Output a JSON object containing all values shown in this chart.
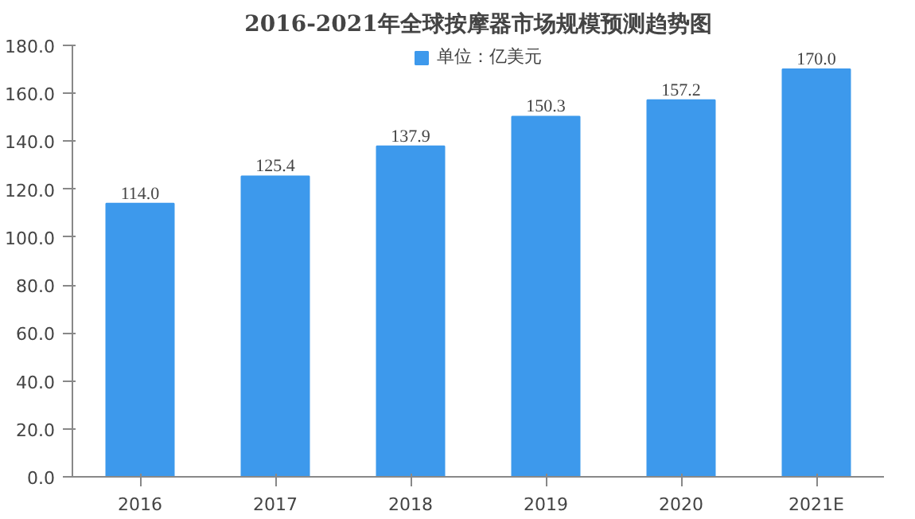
{
  "chart_data": {
    "type": "bar",
    "title": "2016-2021年全球按摩器市场规模预测趋势图",
    "categories": [
      "2016",
      "2017",
      "2018",
      "2019",
      "2020",
      "2021E"
    ],
    "series": [
      {
        "name": "单位：亿美元",
        "color": "#3d99ec",
        "values": [
          114.0,
          125.4,
          137.9,
          150.3,
          157.2,
          170.0
        ],
        "value_labels": [
          "114.0",
          "125.4",
          "137.9",
          "150.3",
          "157.2",
          "170.0"
        ]
      }
    ],
    "ylim": [
      0,
      180
    ],
    "yticks": [
      {
        "value": 0,
        "label": "0.0"
      },
      {
        "value": 20,
        "label": "20.0"
      },
      {
        "value": 40,
        "label": "40.0"
      },
      {
        "value": 60,
        "label": "60.0"
      },
      {
        "value": 80,
        "label": "80.0"
      },
      {
        "value": 100,
        "label": "100.0"
      },
      {
        "value": 120,
        "label": "120.0"
      },
      {
        "value": 140,
        "label": "140.0"
      },
      {
        "value": 160,
        "label": "160.0"
      },
      {
        "value": 180,
        "label": "180.0"
      }
    ],
    "grid": false,
    "legend": "top"
  }
}
